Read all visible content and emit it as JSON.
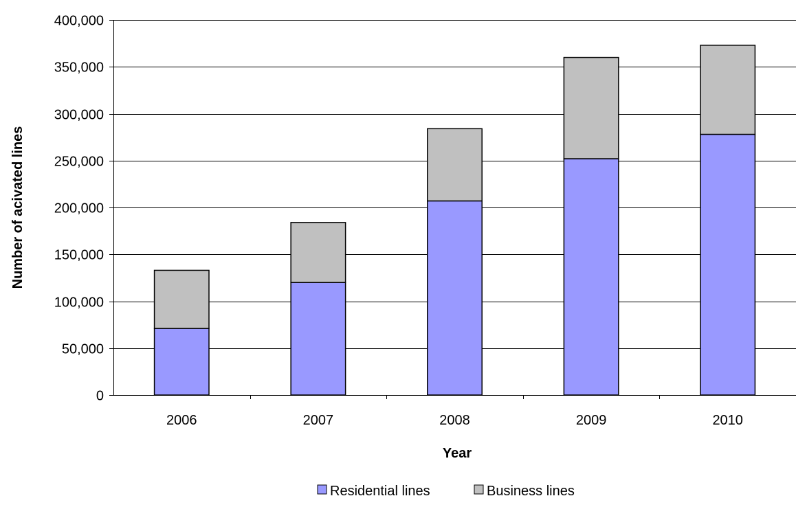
{
  "chart_data": {
    "type": "bar",
    "stacked": true,
    "title": "",
    "xlabel": "Year",
    "ylabel": "Number of acivated lines",
    "categories": [
      "2006",
      "2007",
      "2008",
      "2009",
      "2010"
    ],
    "series": [
      {
        "name": "Residential lines",
        "color": "#9999ff",
        "values": [
          71000,
          120000,
          207000,
          252000,
          278000
        ]
      },
      {
        "name": "Business lines",
        "color": "#c0c0c0",
        "values": [
          62000,
          64000,
          77000,
          108000,
          95000
        ]
      }
    ],
    "ylim": [
      0,
      400000
    ],
    "yticks": [
      0,
      50000,
      100000,
      150000,
      200000,
      250000,
      300000,
      350000,
      400000
    ],
    "ytick_labels": [
      "0",
      "50,000",
      "100,000",
      "150,000",
      "200,000",
      "250,000",
      "300,000",
      "350,000",
      "400,000"
    ],
    "grid": true,
    "legend_position": "bottom"
  }
}
